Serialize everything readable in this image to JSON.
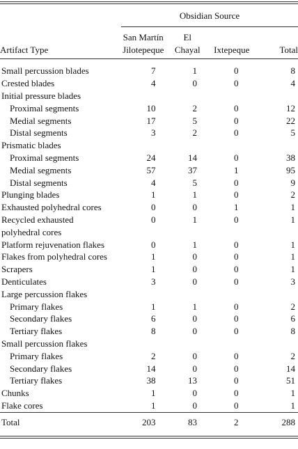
{
  "table": {
    "spanner": "Obsidian Source",
    "columns": [
      [
        "Artifact Type"
      ],
      [
        "San Martín",
        "Jilotepeque"
      ],
      [
        "El",
        "Chayal"
      ],
      [
        "Ixtepeque"
      ],
      [
        "Total"
      ]
    ],
    "rows": [
      {
        "label": "Small percussion blades",
        "cells": [
          7,
          1,
          0,
          8
        ]
      },
      {
        "label": "Crested blades",
        "cells": [
          4,
          0,
          0,
          4
        ]
      },
      {
        "label": "Initial pressure blades",
        "rows": [
          {
            "label": "Proximal segments",
            "cells": [
              10,
              2,
              0,
              12
            ]
          },
          {
            "label": "Medial segments",
            "cells": [
              17,
              5,
              0,
              22
            ]
          },
          {
            "label": "Distal segments",
            "cells": [
              3,
              2,
              0,
              5
            ]
          }
        ]
      },
      {
        "label": "Prismatic blades",
        "rows": [
          {
            "label": "Proximal segments",
            "cells": [
              24,
              14,
              0,
              38
            ]
          },
          {
            "label": "Medial segments",
            "cells": [
              57,
              37,
              1,
              95
            ]
          },
          {
            "label": "Distal segments",
            "cells": [
              4,
              5,
              0,
              9
            ]
          }
        ]
      },
      {
        "label": "Plunging blades",
        "cells": [
          1,
          1,
          0,
          2
        ]
      },
      {
        "label": "Exhausted polyhedral cores",
        "cells": [
          0,
          0,
          1,
          1
        ]
      },
      {
        "label": "Recycled exhausted polyhedral cores",
        "cells": [
          0,
          1,
          0,
          1
        ]
      },
      {
        "label": "Platform rejuvenation flakes",
        "cells": [
          0,
          1,
          0,
          1
        ]
      },
      {
        "label": "Flakes from polyhedral cores",
        "cells": [
          1,
          0,
          0,
          1
        ]
      },
      {
        "label": "Scrapers",
        "cells": [
          1,
          0,
          0,
          1
        ]
      },
      {
        "label": "Denticulates",
        "cells": [
          3,
          0,
          0,
          3
        ]
      },
      {
        "label": "Large percussion flakes",
        "rows": [
          {
            "label": "Primary flakes",
            "cells": [
              1,
              1,
              0,
              2
            ]
          },
          {
            "label": "Secondary flakes",
            "cells": [
              6,
              0,
              0,
              6
            ]
          },
          {
            "label": "Tertiary flakes",
            "cells": [
              8,
              0,
              0,
              8
            ]
          }
        ]
      },
      {
        "label": "Small percussion flakes",
        "rows": [
          {
            "label": "Primary flakes",
            "cells": [
              2,
              0,
              0,
              2
            ]
          },
          {
            "label": "Secondary flakes",
            "cells": [
              14,
              0,
              0,
              14
            ]
          },
          {
            "label": "Tertiary flakes",
            "cells": [
              38,
              13,
              0,
              51
            ]
          }
        ]
      },
      {
        "label": "Chunks",
        "cells": [
          1,
          0,
          0,
          1
        ]
      },
      {
        "label": "Flake cores",
        "cells": [
          1,
          0,
          0,
          1
        ]
      }
    ],
    "total": {
      "label": "Total",
      "cells": [
        203,
        83,
        2,
        288
      ]
    }
  }
}
